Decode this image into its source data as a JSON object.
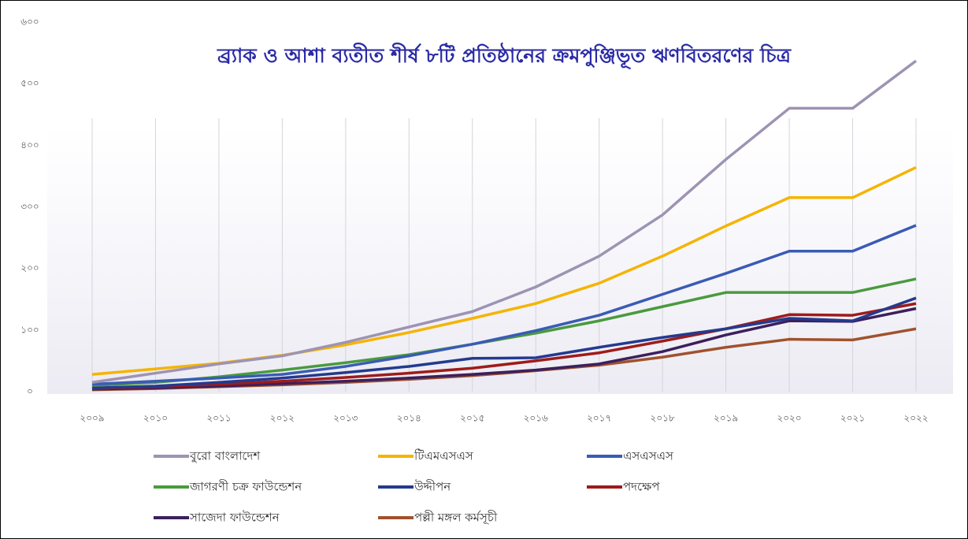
{
  "chart_data": {
    "type": "line",
    "title": "ব্র্যাক ও আশা ব্যতীত শীর্ষ ৮টি প্রতিষ্ঠানের ক্রমপুঞ্জিভূত ঋণবিতরণের চিত্র",
    "categories": [
      "২০০৯",
      "২০১০",
      "২০১১",
      "২০১২",
      "২০১৩",
      "২০১৪",
      "২০১৫",
      "২০১৬",
      "২০১৭",
      "২০১৮",
      "২০১৯",
      "২০২০",
      "২০২১",
      "২০২২"
    ],
    "ylim": [
      0,
      600
    ],
    "yticks": [
      {
        "value": 0,
        "label": "০"
      },
      {
        "value": 100,
        "label": "১০০"
      },
      {
        "value": 200,
        "label": "২০০"
      },
      {
        "value": 300,
        "label": "৩০০"
      },
      {
        "value": 400,
        "label": "৪০০"
      },
      {
        "value": 500,
        "label": "৫০০"
      },
      {
        "value": 600,
        "label": "৬০০"
      }
    ],
    "grid": true,
    "series": [
      {
        "name": "বুরো বাংলাদেশ",
        "color": "#9d93b3",
        "values": [
          15,
          30,
          45,
          58,
          80,
          105,
          130,
          170,
          220,
          287,
          377,
          460,
          460,
          537
        ]
      },
      {
        "name": "টিএমএসএস",
        "color": "#f5b400",
        "values": [
          28,
          37,
          46,
          59,
          76,
          96,
          119,
          143,
          176,
          220,
          269,
          315,
          315,
          364
        ]
      },
      {
        "name": "এসএসএস",
        "color": "#3a5bb5",
        "values": [
          12,
          17,
          22,
          28,
          41,
          58,
          77,
          99,
          124,
          158,
          192,
          228,
          228,
          270
        ]
      },
      {
        "name": "জাগরণী চক্র ফাউন্ডেশন",
        "color": "#4a9a3e",
        "values": [
          10,
          15,
          24,
          35,
          47,
          60,
          77,
          95,
          115,
          138,
          161,
          161,
          161,
          183
        ]
      },
      {
        "name": "উদ্দীপন",
        "color": "#243a8f",
        "values": [
          6,
          9,
          15,
          22,
          31,
          41,
          54,
          55,
          72,
          88,
          102,
          119,
          115,
          152
        ]
      },
      {
        "name": "পদক্ষেপ",
        "color": "#9e1b1b",
        "values": [
          5,
          8,
          12,
          17,
          23,
          30,
          38,
          50,
          63,
          82,
          102,
          125,
          124,
          143
        ]
      },
      {
        "name": "সাজেদা ফাউন্ডেশন",
        "color": "#3d1f5c",
        "values": [
          4,
          6,
          9,
          13,
          17,
          22,
          28,
          35,
          45,
          65,
          92,
          115,
          114,
          135
        ]
      },
      {
        "name": "পল্লী মঙ্গল কর্মসূচী",
        "color": "#a0522d",
        "values": [
          3,
          5,
          8,
          11,
          15,
          20,
          26,
          34,
          43,
          56,
          72,
          85,
          84,
          102
        ]
      }
    ]
  }
}
